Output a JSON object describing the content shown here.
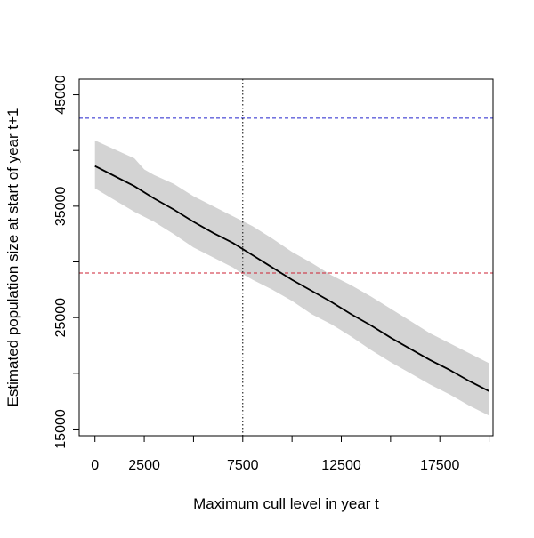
{
  "chart_data": {
    "type": "line",
    "title": "",
    "xlabel": "Maximum cull level in year t",
    "ylabel": "Estimated population size at start of year t+1",
    "xlim": [
      -800,
      20200
    ],
    "ylim": [
      14400,
      46400
    ],
    "x_ticks": [
      0,
      2500,
      5000,
      7500,
      10000,
      12500,
      15000,
      17500,
      20000
    ],
    "x_tick_labels": [
      "0",
      "2500",
      "",
      "7500",
      "",
      "12500",
      "",
      "17500",
      ""
    ],
    "y_ticks": [
      15000,
      20000,
      25000,
      30000,
      35000,
      40000,
      45000
    ],
    "y_tick_labels": [
      "15000",
      "",
      "25000",
      "",
      "35000",
      "",
      "45000"
    ],
    "grid": false,
    "legend": "none",
    "series": [
      {
        "role": "estimate",
        "color": "#000000",
        "x": [
          0,
          2000,
          3000,
          4000,
          5000,
          6000,
          7000,
          8000,
          9000,
          10000,
          11000,
          12000,
          13000,
          14000,
          15000,
          16000,
          17000,
          18000,
          19000,
          20000
        ],
        "y": [
          38600,
          36800,
          35700,
          34700,
          33600,
          32600,
          31700,
          30600,
          29500,
          28400,
          27400,
          26400,
          25300,
          24300,
          23200,
          22200,
          21200,
          20300,
          19300,
          18400
        ]
      },
      {
        "role": "band_upper",
        "color": "#d3d3d3",
        "x": [
          0,
          2000,
          2500,
          3000,
          4000,
          5000,
          6000,
          7000,
          8000,
          9000,
          10000,
          11000,
          12000,
          13000,
          14000,
          15000,
          16000,
          17000,
          18000,
          19000,
          20000
        ],
        "y": [
          40900,
          39300,
          38300,
          37800,
          37000,
          35900,
          35000,
          34100,
          33200,
          32100,
          30900,
          29900,
          28800,
          27900,
          26900,
          25800,
          24700,
          23600,
          22700,
          21800,
          20900
        ]
      },
      {
        "role": "band_lower",
        "color": "#d3d3d3",
        "x": [
          0,
          2000,
          3000,
          4000,
          5000,
          6000,
          7000,
          7500,
          8000,
          9000,
          10000,
          11000,
          12000,
          13000,
          14000,
          15000,
          16000,
          17000,
          18000,
          19000,
          20000
        ],
        "y": [
          36600,
          34500,
          33600,
          32500,
          31300,
          30400,
          29500,
          28900,
          28400,
          27500,
          26500,
          25300,
          24400,
          23300,
          22100,
          21000,
          20000,
          19000,
          18100,
          17100,
          16200
        ]
      }
    ],
    "reference_lines": [
      {
        "orientation": "horizontal",
        "value": 42900,
        "color": "#2222cc",
        "style": "dashed"
      },
      {
        "orientation": "horizontal",
        "value": 29000,
        "color": "#cc2233",
        "style": "dashed"
      },
      {
        "orientation": "vertical",
        "value": 7500,
        "color": "#000000",
        "style": "dotted"
      }
    ]
  }
}
